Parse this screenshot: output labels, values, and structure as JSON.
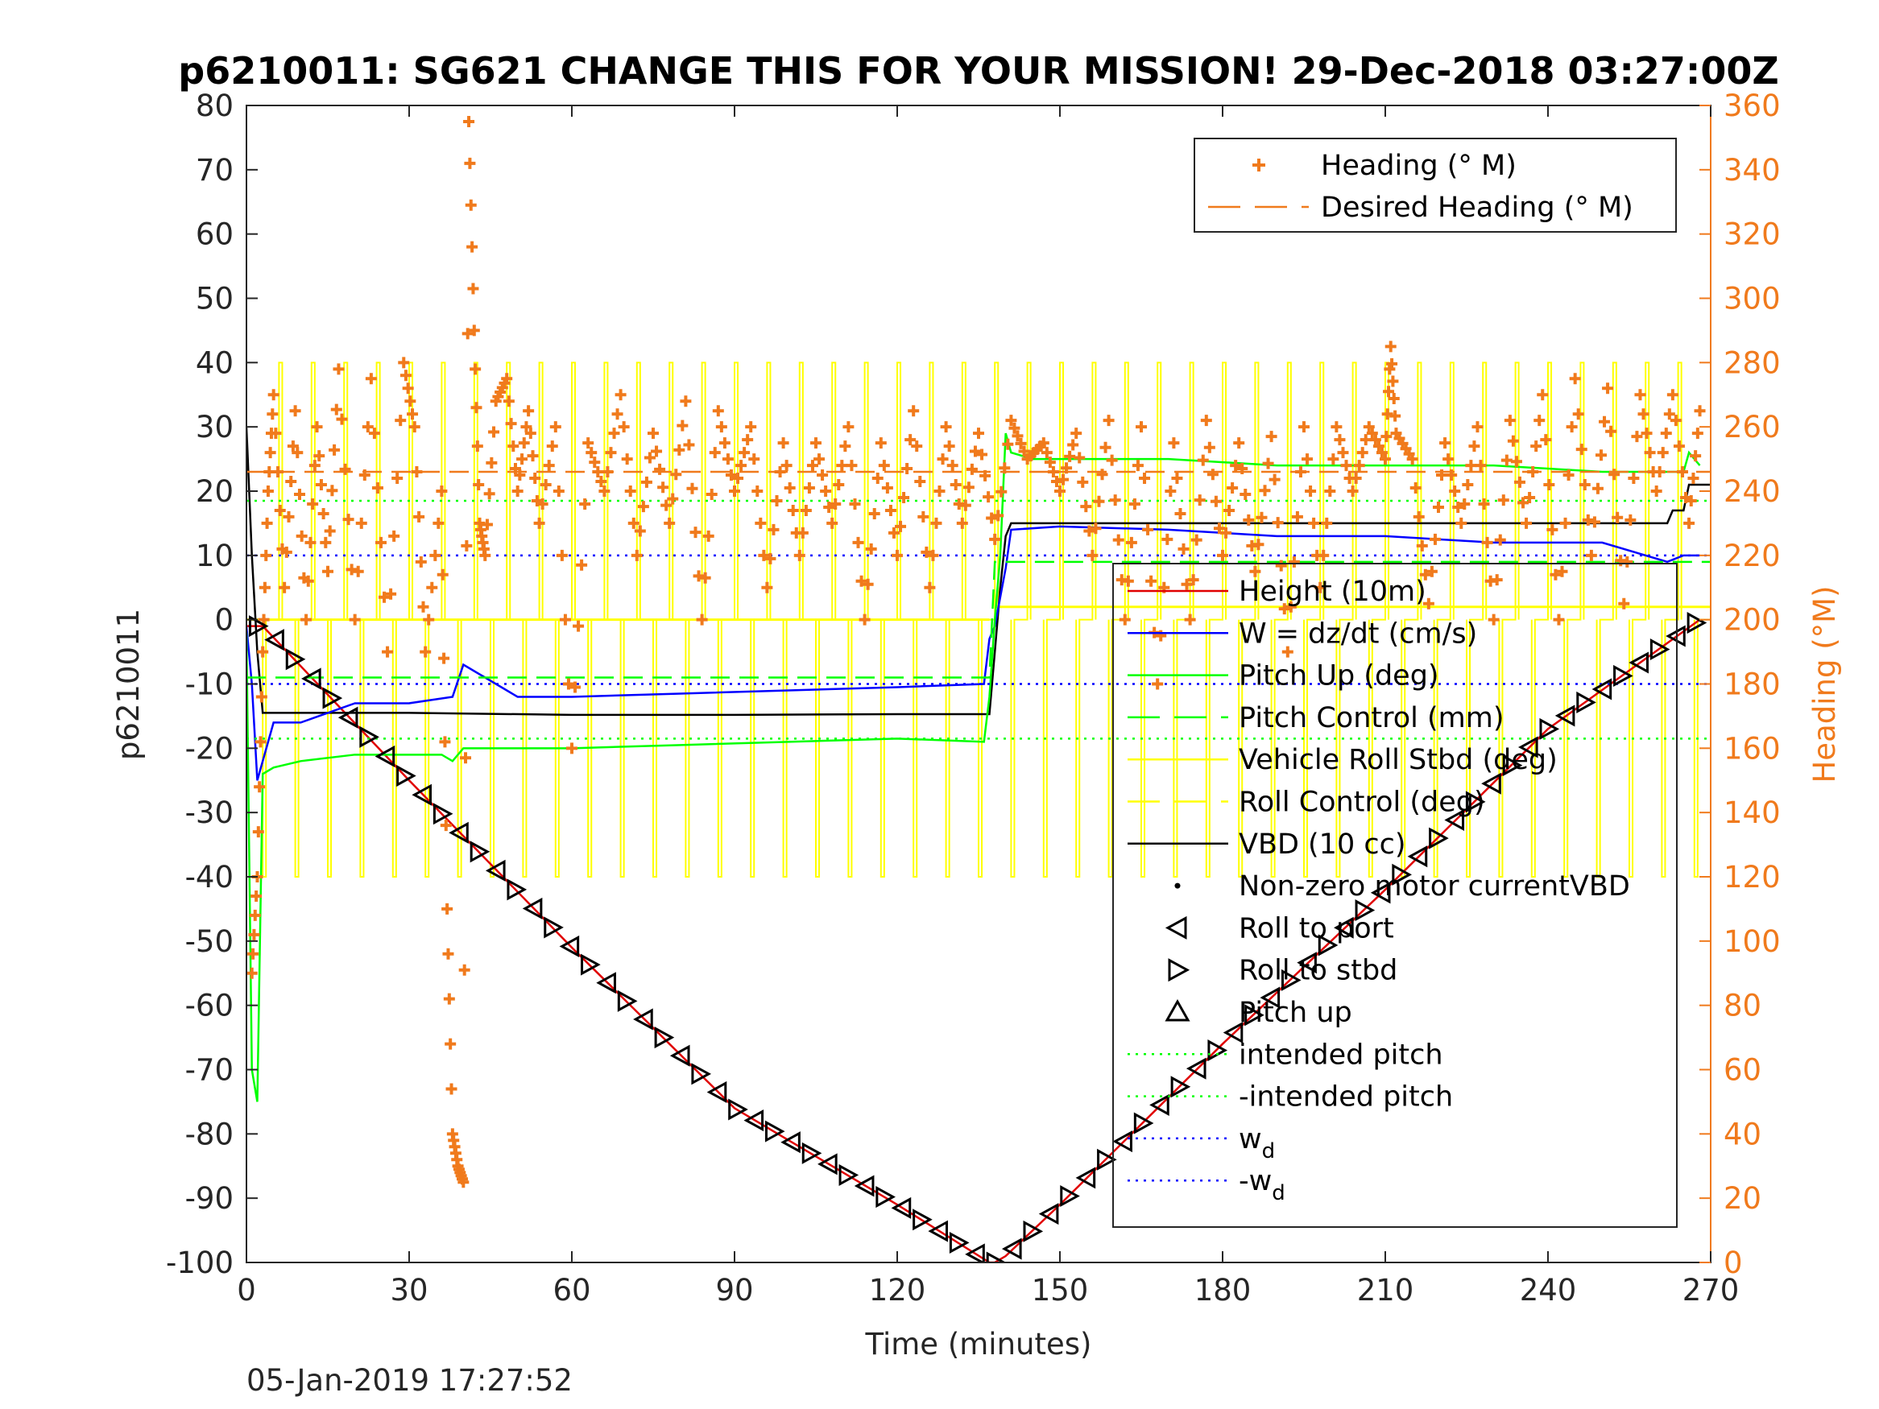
{
  "chart_data": {
    "type": "line",
    "title": "p6210011: SG621 CHANGE THIS FOR YOUR MISSION! 29-Dec-2018 03:27:00Z",
    "xlabel": "Time (minutes)",
    "ylabel": "p6210011",
    "y2label": "Heading (°M)",
    "footer": "05-Jan-2019 17:27:52",
    "xlim": [
      0,
      270
    ],
    "ylim": [
      -100,
      80
    ],
    "y2lim": [
      0,
      360
    ],
    "grid": false,
    "xticks": [
      "0",
      "30",
      "60",
      "90",
      "120",
      "150",
      "180",
      "210",
      "240",
      "270"
    ],
    "yticks": [
      "80",
      "70",
      "60",
      "50",
      "40",
      "30",
      "20",
      "10",
      "0",
      "-10",
      "-20",
      "-30",
      "-40",
      "-50",
      "-60",
      "-70",
      "-80",
      "-90",
      "-100"
    ],
    "y2ticks": [
      "360",
      "340",
      "320",
      "300",
      "280",
      "260",
      "240",
      "220",
      "200",
      "180",
      "160",
      "140",
      "120",
      "100",
      "80",
      "60",
      "40",
      "20",
      "0"
    ],
    "legend_right": {
      "position": "top-right",
      "entries": [
        {
          "label": "Heading (° M)",
          "color": "#f07a1c",
          "style": "plus"
        },
        {
          "label": "Desired Heading (° M)",
          "color": "#f07a1c",
          "style": "dashed"
        }
      ]
    },
    "legend_left": {
      "position": "right",
      "entries": [
        {
          "label": "Height (10m)",
          "color": "#e00000",
          "style": "solid"
        },
        {
          "label": "W = dz/dt (cm/s)",
          "color": "#0000ff",
          "style": "solid"
        },
        {
          "label": "Pitch Up (deg)",
          "color": "#00ff00",
          "style": "solid"
        },
        {
          "label": "Pitch Control (mm)",
          "color": "#00ff00",
          "style": "dashed"
        },
        {
          "label": "Vehicle Roll Stbd (deg)",
          "color": "#ffff00",
          "style": "solid"
        },
        {
          "label": "Roll Control (deg)",
          "color": "#ffff00",
          "style": "dashed"
        },
        {
          "label": "VBD (10 cc)",
          "color": "#000000",
          "style": "solid"
        },
        {
          "label": "Non-zero motor currentVBD",
          "color": "#000000",
          "style": "dot"
        },
        {
          "label": "Roll to port",
          "color": "#000000",
          "style": "tri-left"
        },
        {
          "label": "Roll to stbd",
          "color": "#000000",
          "style": "tri-right"
        },
        {
          "label": "Pitch up",
          "color": "#000000",
          "style": "tri-up"
        },
        {
          "label": "intended pitch",
          "color": "#00ff00",
          "style": "dotted"
        },
        {
          "label": "-intended pitch",
          "color": "#00ff00",
          "style": "dotted"
        },
        {
          "label": "w",
          "sub": "d",
          "color": "#0000ff",
          "style": "dotted"
        },
        {
          "label": "-w",
          "sub": "d",
          "color": "#0000ff",
          "style": "dotted"
        }
      ]
    },
    "series": [
      {
        "name": "Height (10m)",
        "color": "#e00000",
        "axis": "left",
        "x": [
          0,
          3,
          30,
          60,
          90,
          120,
          137,
          138,
          140,
          150,
          180,
          210,
          240,
          268
        ],
        "y": [
          -1,
          -1,
          -25,
          -51,
          -76,
          -91,
          -100,
          -100,
          -99,
          -91,
          -66,
          -42,
          -17,
          0
        ]
      },
      {
        "name": "VBD (10 cc)",
        "color": "#000000",
        "axis": "left",
        "x": [
          0,
          1,
          2,
          3,
          10,
          30,
          60,
          90,
          120,
          137,
          138,
          139,
          140,
          141,
          160,
          200,
          240,
          262,
          263,
          265,
          266,
          270
        ],
        "y": [
          30,
          10,
          -5,
          -14.5,
          -14.5,
          -14.5,
          -14.8,
          -14.8,
          -14.7,
          -14.7,
          -5,
          5,
          13,
          15,
          15,
          15,
          15,
          15,
          17,
          17,
          21,
          21
        ]
      },
      {
        "name": "W = dz/dt (cm/s)",
        "color": "#0000ff",
        "axis": "left",
        "x": [
          0,
          1,
          2,
          5,
          10,
          20,
          30,
          38,
          40,
          50,
          60,
          80,
          100,
          120,
          136,
          137,
          138,
          140,
          141,
          150,
          170,
          190,
          210,
          230,
          250,
          262,
          265,
          268
        ],
        "y": [
          -1,
          -10,
          -25,
          -16,
          -16,
          -13,
          -13,
          -12,
          -7,
          -12,
          -12,
          -11.5,
          -11,
          -10.5,
          -10,
          -3,
          -1,
          8,
          14,
          14.5,
          14,
          13,
          13,
          12,
          12,
          9,
          10,
          10
        ]
      },
      {
        "name": "Pitch Up (deg)",
        "color": "#00ff00",
        "axis": "left",
        "x": [
          0,
          1,
          2,
          3,
          5,
          10,
          20,
          30,
          36,
          38,
          40,
          50,
          60,
          80,
          100,
          120,
          136,
          137,
          138,
          139,
          140,
          141,
          145,
          150,
          170,
          190,
          210,
          230,
          250,
          265,
          266,
          268
        ],
        "y": [
          -2,
          -70,
          -75,
          -24,
          -23,
          -22,
          -21,
          -21,
          -21,
          -22,
          -20,
          -20,
          -20,
          -19.5,
          -19,
          -18.5,
          -19,
          -12,
          0,
          10,
          29,
          26,
          25,
          25,
          25,
          24,
          24,
          24,
          23,
          23,
          26,
          24
        ]
      },
      {
        "name": "intended pitch",
        "color": "#00ff00",
        "axis": "left",
        "style": "dotted",
        "x": [
          0,
          270
        ],
        "y": [
          18.5,
          18.5
        ]
      },
      {
        "name": "-intended pitch",
        "color": "#00ff00",
        "axis": "left",
        "style": "dotted",
        "x": [
          0,
          270
        ],
        "y": [
          -18.5,
          -18.5
        ]
      },
      {
        "name": "w_d",
        "color": "#0000ff",
        "axis": "left",
        "style": "dotted",
        "x": [
          0,
          270
        ],
        "y": [
          10,
          10
        ]
      },
      {
        "name": "-w_d",
        "color": "#0000ff",
        "axis": "left",
        "style": "dotted",
        "x": [
          0,
          270
        ],
        "y": [
          -10,
          -10
        ]
      },
      {
        "name": "Pitch Control (mm)",
        "color": "#00ff00",
        "axis": "left",
        "style": "dashed",
        "x": [
          0,
          137,
          138,
          270
        ],
        "y": [
          -9,
          -9,
          9,
          9
        ]
      },
      {
        "name": "Heading (° M)",
        "color": "#f07a1c",
        "axis": "right",
        "style": "plus",
        "x": [
          1,
          2,
          3,
          4,
          5,
          7,
          9,
          11,
          13,
          15,
          17,
          20,
          23,
          26,
          29,
          31,
          33,
          36,
          37,
          38,
          39,
          40,
          41,
          42,
          43,
          44,
          46,
          48,
          50,
          52,
          54,
          57,
          60,
          63,
          66,
          69,
          72,
          75,
          78,
          81,
          84,
          87,
          90,
          93,
          96,
          99,
          102,
          105,
          108,
          111,
          114,
          117,
          120,
          123,
          126,
          129,
          132,
          135,
          138,
          141,
          144,
          147,
          150,
          153,
          156,
          159,
          162,
          165,
          168,
          171,
          174,
          177,
          180,
          183,
          186,
          189,
          192,
          195,
          198,
          201,
          204,
          207,
          210,
          211,
          212,
          215,
          218,
          221,
          224,
          227,
          230,
          233,
          236,
          239,
          242,
          245,
          248,
          251,
          254,
          257,
          260,
          263,
          266,
          268
        ],
        "y": [
          90,
          120,
          190,
          240,
          270,
          210,
          265,
          200,
          260,
          215,
          278,
          200,
          275,
          190,
          280,
          260,
          190,
          240,
          110,
          40,
          30,
          25,
          355,
          290,
          230,
          220,
          268,
          275,
          240,
          265,
          230,
          260,
          160,
          255,
          240,
          270,
          220,
          258,
          230,
          268,
          200,
          265,
          240,
          260,
          210,
          255,
          220,
          255,
          230,
          260,
          200,
          255,
          220,
          265,
          210,
          260,
          230,
          258,
          225,
          262,
          250,
          255,
          240,
          258,
          220,
          262,
          200,
          260,
          180,
          255,
          200,
          262,
          220,
          255,
          215,
          257,
          190,
          260,
          210,
          260,
          240,
          260,
          250,
          285,
          258,
          250,
          205,
          255,
          230,
          260,
          200,
          262,
          230,
          270,
          200,
          275,
          220,
          272,
          205,
          270,
          240,
          270,
          230,
          265
        ]
      },
      {
        "name": "Desired Heading (° M)",
        "color": "#f07a1c",
        "axis": "right",
        "style": "dashed",
        "x": [
          0,
          270
        ],
        "y": [
          246,
          246
        ]
      }
    ]
  }
}
